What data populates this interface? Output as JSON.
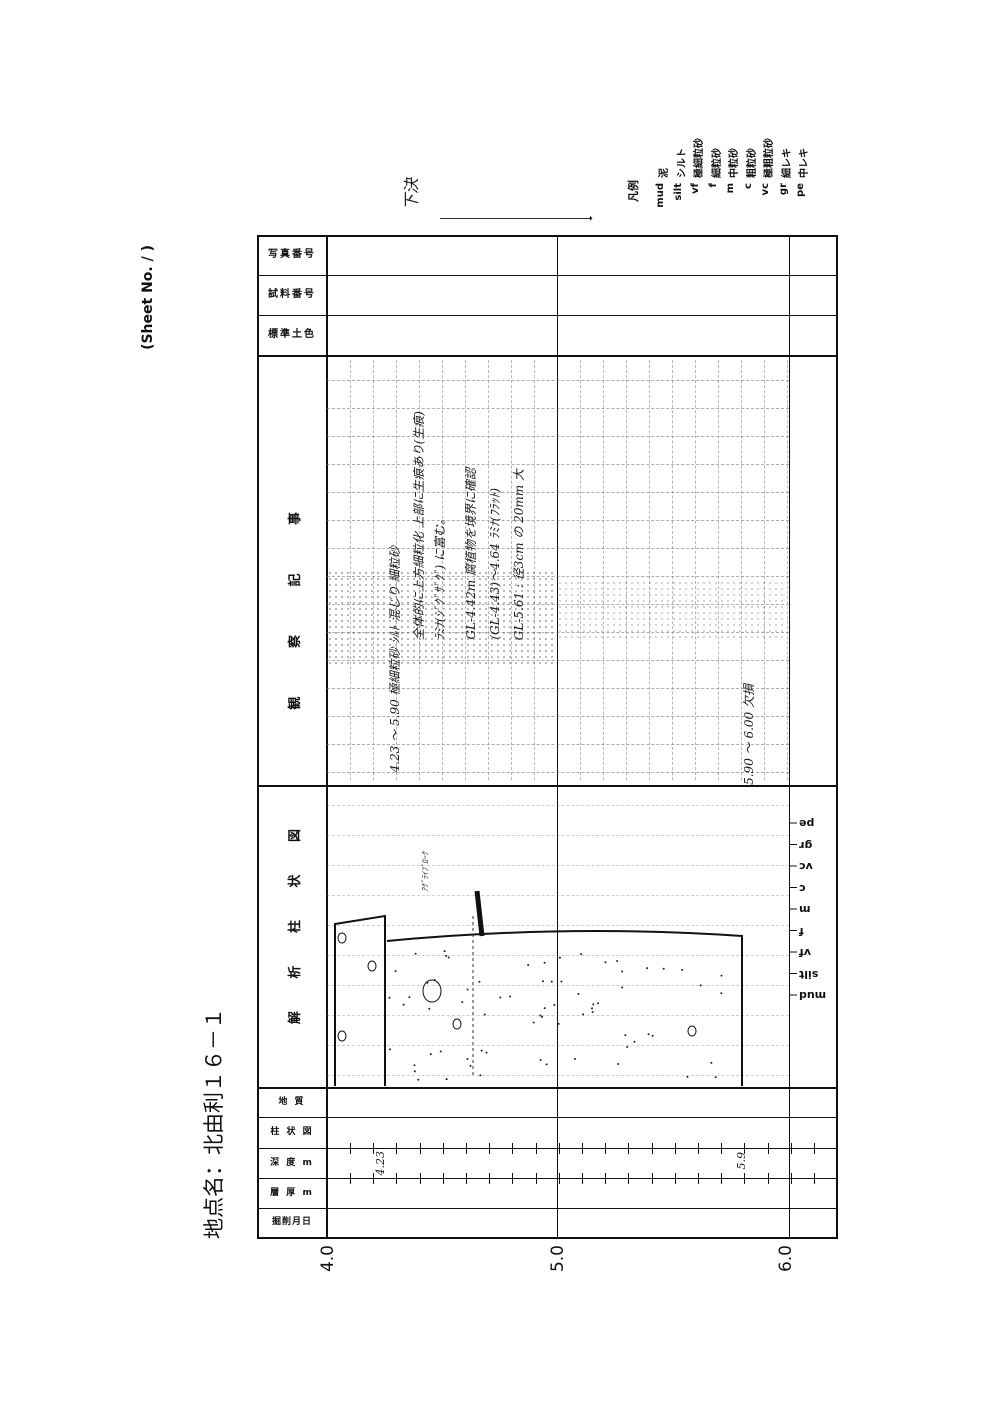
{
  "sheet_no": "(Sheet No.      /      )",
  "site_name": "地点名：北由利１６－１",
  "legend": {
    "title": "凡例",
    "items": [
      {
        "code": "mud",
        "label": "泥"
      },
      {
        "code": "silt",
        "label": "シルト"
      },
      {
        "code": "vf",
        "label": "極細粒砂"
      },
      {
        "code": "f",
        "label": "細粒砂"
      },
      {
        "code": "m",
        "label": "中粒砂"
      },
      {
        "code": "c",
        "label": "粗粒砂"
      },
      {
        "code": "vc",
        "label": "極粗粒砂"
      },
      {
        "code": "gr",
        "label": "細レキ"
      },
      {
        "code": "pe",
        "label": "中レキ"
      }
    ]
  },
  "top_note": "下決",
  "headers": {
    "photo_no": "写真番号",
    "sample_no": "試料番号",
    "soil_color": "標準土色",
    "observation": "観 察 記 事",
    "column_analysis": "解 析 柱 状 図",
    "geology": "地  質",
    "column": "柱 状 図",
    "depth": "深 度 m",
    "thickness": "層 厚 m",
    "date": "掘削月日"
  },
  "depth_axis": [
    "4.0",
    "5.0",
    "6.0"
  ],
  "depth_marks": [
    "4.23",
    "5.9"
  ],
  "grain_scale": [
    "mud",
    "silt",
    "vf",
    "f",
    "m",
    "c",
    "vc",
    "gr",
    "pe"
  ],
  "annotations": {
    "column_label": "ｱｸﾞﾗｲﾌﾞﾛｰｸ"
  },
  "observations": [
    "4.23 ～ 5.90  極細粒砂 ｼﾙﾄ 混じり 細粒砂",
    "全体的に上方細粒化 上部に生痕あり(生痕)",
    "ﾗﾐﾅ(ｼﾞｸﾞｻﾞｸﾞ) に富む。",
    "GL-4.42m 腐植物を境界に確認",
    "(GL-4.43)～4.64 ﾗﾐﾅ(ﾌﾗｯﾄ)",
    "GL-5.61 : 径3cm の 20mm 大",
    "5.90 ～ 6.00 欠損"
  ]
}
